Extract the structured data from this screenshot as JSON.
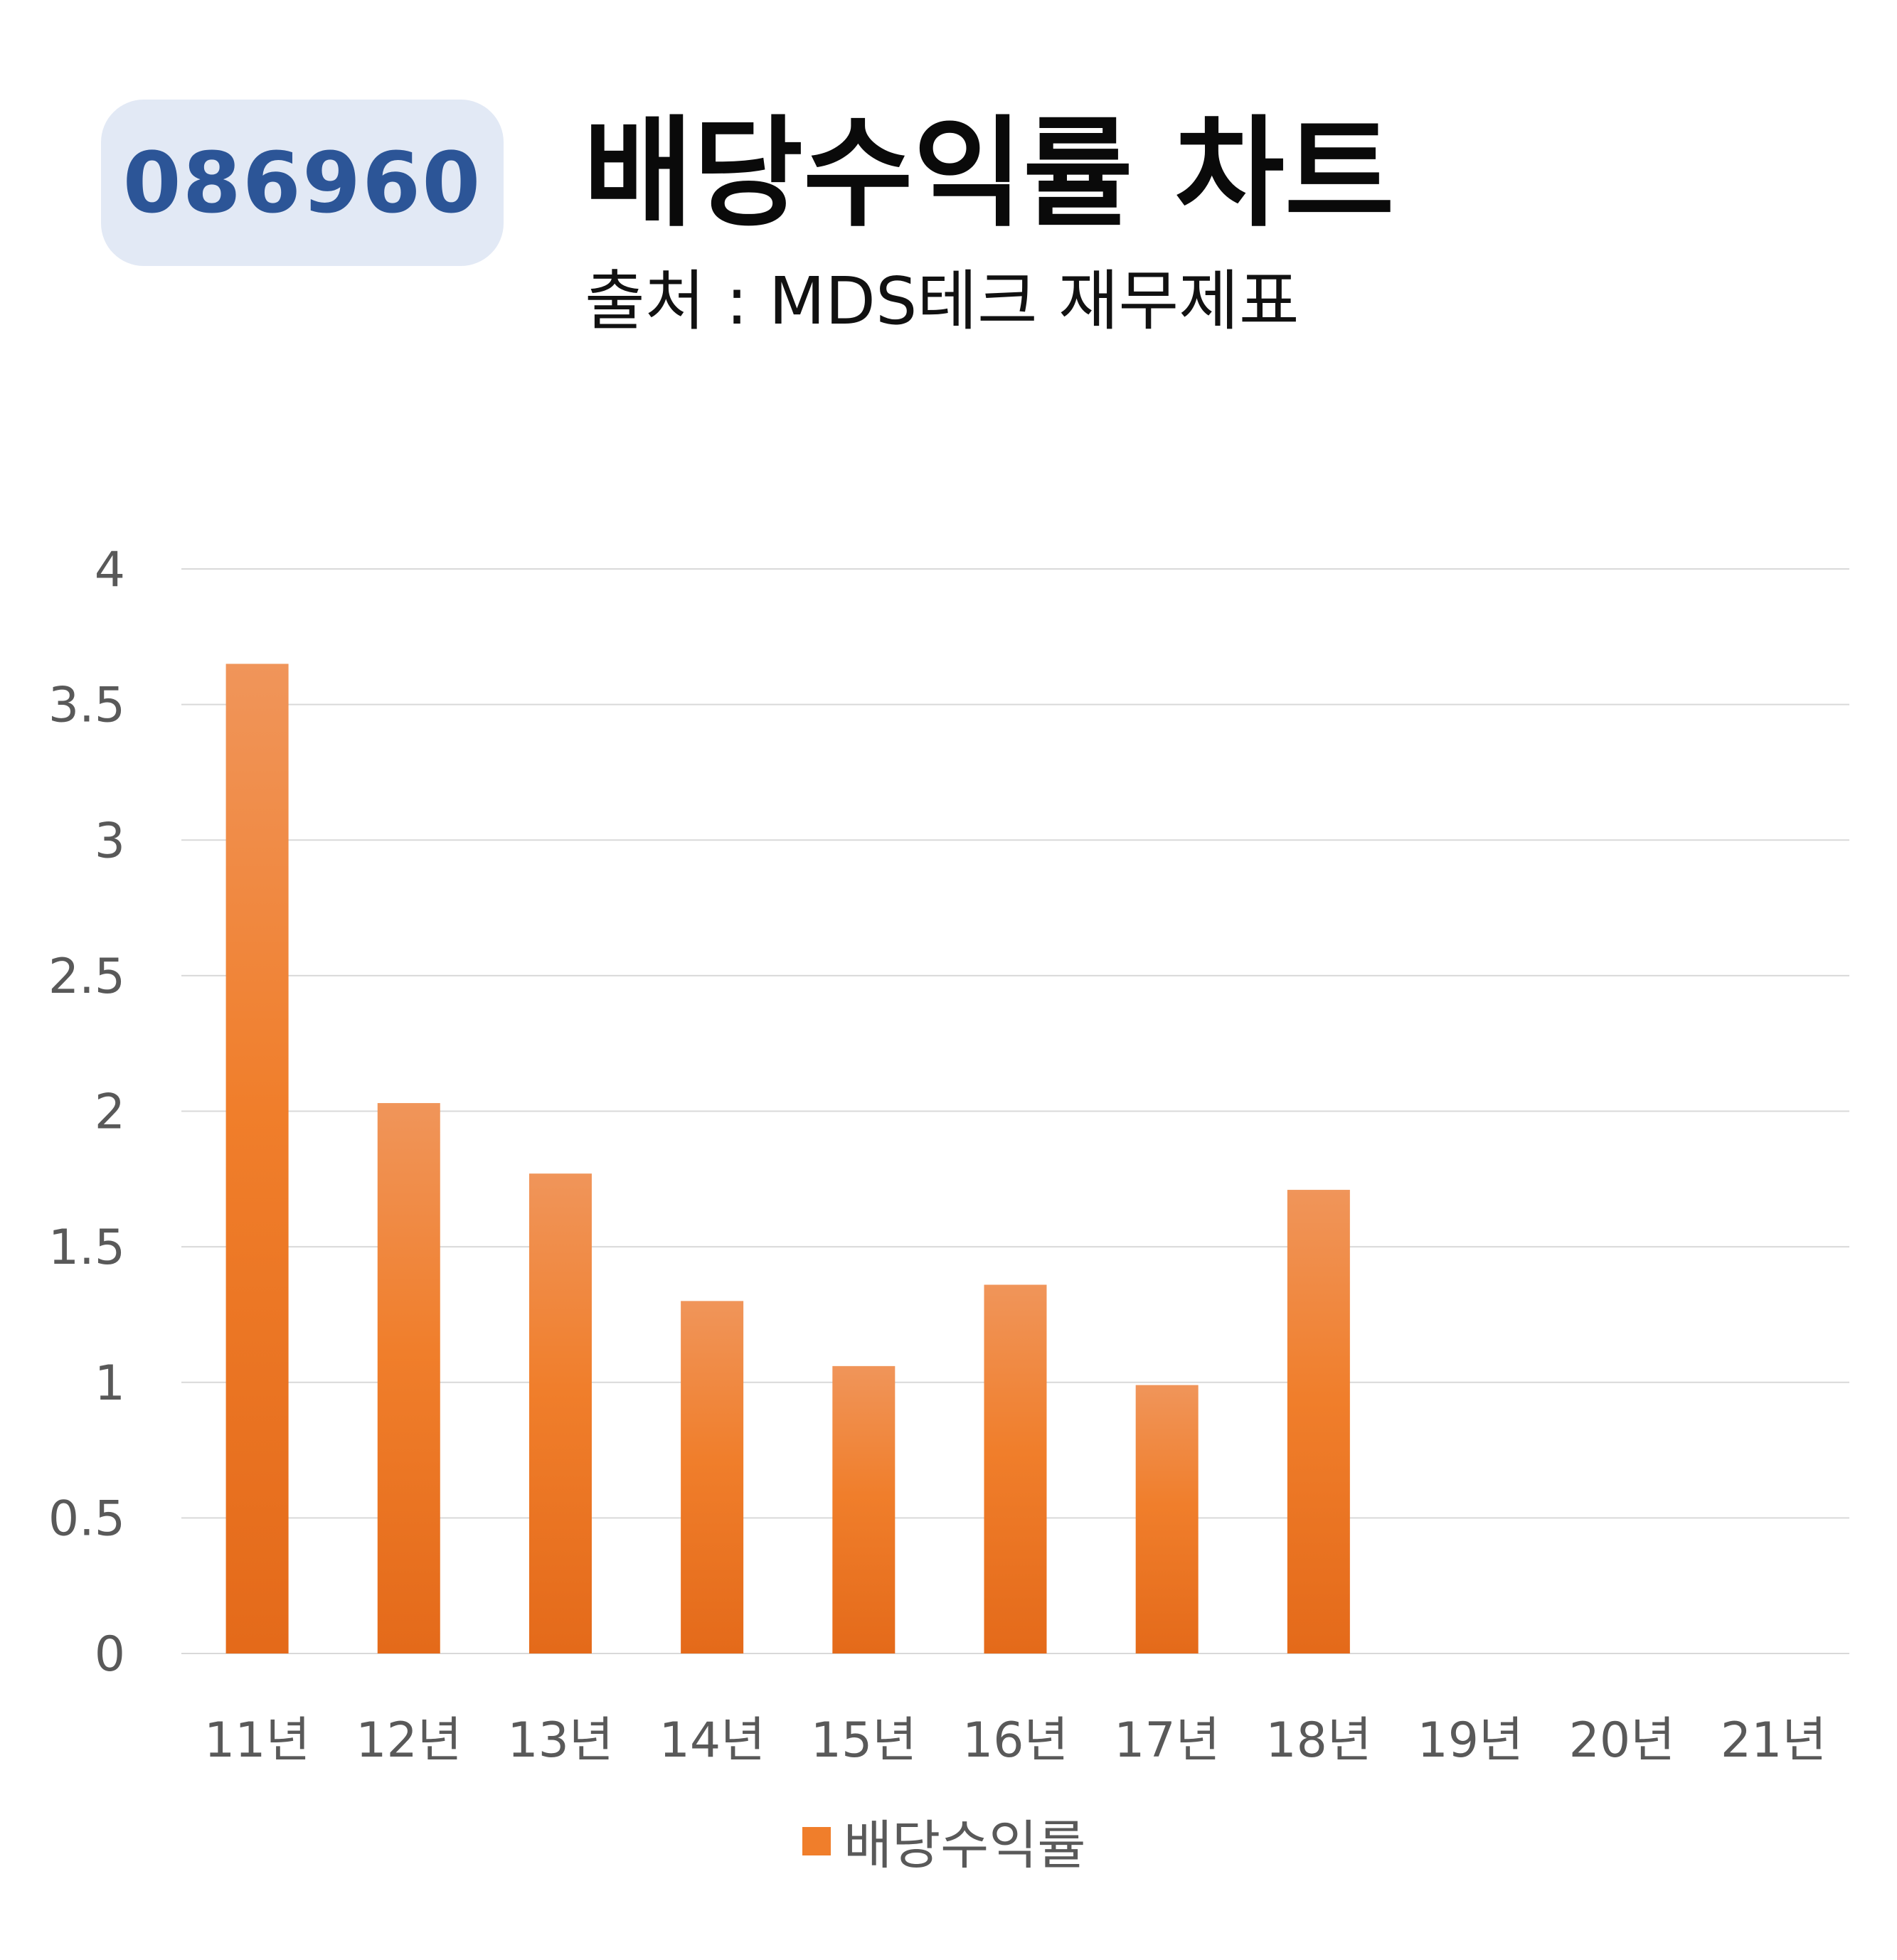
{
  "header": {
    "code": "086960",
    "title": "배당수익률 차트",
    "subtitle": "출처 : MDS테크 재무제표"
  },
  "colors": {
    "bar": "#f07e2b",
    "bar_top": "#f0955a",
    "bar_bottom": "#e46a1a",
    "grid": "#d9d9d9",
    "axis_text": "#595959",
    "badge_bg": "#e2e9f5",
    "badge_text": "#2c5597"
  },
  "chart_data": {
    "type": "bar",
    "categories": [
      "11년",
      "12년",
      "13년",
      "14년",
      "15년",
      "16년",
      "17년",
      "18년",
      "19년",
      "20년",
      "21년"
    ],
    "series": [
      {
        "name": "배당수익률",
        "values": [
          3.65,
          2.03,
          1.77,
          1.3,
          1.06,
          1.36,
          0.99,
          1.71,
          null,
          null,
          null
        ]
      }
    ],
    "ylim": [
      0,
      4
    ],
    "yticks": [
      "0",
      "0.5",
      "1",
      "1.5",
      "2",
      "2.5",
      "3",
      "3.5",
      "4"
    ],
    "grid": true,
    "legend": "bottom",
    "xlabel": "",
    "ylabel": ""
  }
}
